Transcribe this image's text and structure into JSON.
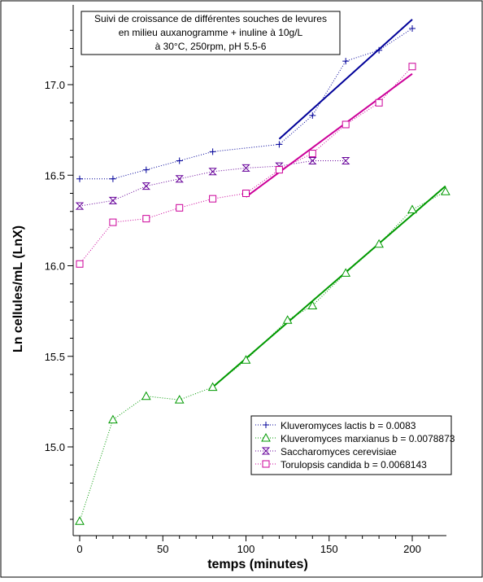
{
  "chart_data": {
    "type": "line",
    "title_lines": [
      "Suivi de croissance de différentes souches de levures",
      "en milieu auxanogramme + inuline à 10g/L",
      "à 30°C, 250rpm, pH 5.5-6"
    ],
    "xlabel": "temps (minutes)",
    "ylabel": "Ln cellules/mL (LnX)",
    "xlim": [
      -2,
      220
    ],
    "ylim": [
      14.55,
      17.35
    ],
    "x_ticks": [
      0,
      50,
      100,
      150,
      200
    ],
    "y_ticks": [
      15.0,
      15.5,
      16.0,
      16.5,
      17.0
    ],
    "y_tick_labels": [
      "15.0",
      "15.5",
      "16.0",
      "16.5",
      "17.0"
    ],
    "grid": false,
    "legend_position": "bottom-right",
    "series": [
      {
        "name": "Kluveromyces lactis b = 0.0083",
        "color": "#000099",
        "marker": "plus",
        "x": [
          0,
          20,
          40,
          60,
          80,
          120,
          140,
          160,
          180,
          200
        ],
        "y": [
          16.48,
          16.48,
          16.53,
          16.58,
          16.63,
          16.67,
          16.83,
          17.13,
          17.19,
          17.31
        ],
        "fit": {
          "x": [
            120,
            200
          ],
          "y": [
            16.7,
            17.36
          ],
          "color": "#000099"
        }
      },
      {
        "name": "Kluveromyces marxianus b = 0.0078873",
        "color": "#009900",
        "marker": "triangle",
        "x": [
          0,
          20,
          40,
          60,
          80,
          100,
          125,
          140,
          160,
          180,
          200,
          220
        ],
        "y": [
          14.59,
          15.15,
          15.28,
          15.26,
          15.33,
          15.48,
          15.7,
          15.78,
          15.96,
          16.12,
          16.31,
          16.41
        ],
        "fit": {
          "x": [
            80,
            220
          ],
          "y": [
            15.33,
            16.44
          ],
          "color": "#009900"
        }
      },
      {
        "name": "Saccharomyces cerevisiae",
        "color": "#660099",
        "marker": "hourglass",
        "x": [
          0,
          20,
          40,
          60,
          80,
          100,
          120,
          140,
          160
        ],
        "y": [
          16.33,
          16.36,
          16.44,
          16.48,
          16.52,
          16.54,
          16.55,
          16.58,
          16.58
        ]
      },
      {
        "name": "Torulopsis candida b = 0.0068143",
        "color": "#cc0099",
        "marker": "square",
        "x": [
          0,
          20,
          40,
          60,
          80,
          100,
          120,
          140,
          160,
          180,
          200
        ],
        "y": [
          16.01,
          16.24,
          16.26,
          16.32,
          16.37,
          16.4,
          16.53,
          16.62,
          16.78,
          16.9,
          17.1
        ],
        "fit": {
          "x": [
            100,
            200
          ],
          "y": [
            16.38,
            17.06
          ],
          "color": "#cc0099"
        }
      }
    ]
  }
}
